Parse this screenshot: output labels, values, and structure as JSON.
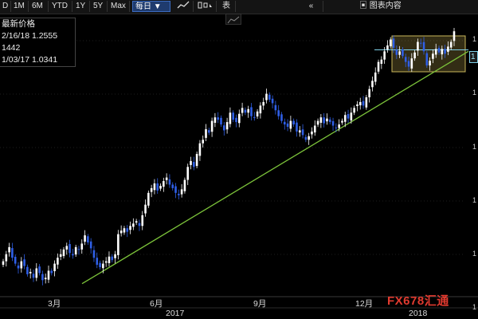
{
  "toolbar": {
    "buttons": [
      "D",
      "1M",
      "6M",
      "YTD",
      "1Y",
      "5Y",
      "Max"
    ],
    "interval": "每日",
    "table_label": "表",
    "collapse": "«",
    "chart_content": "图表内容"
  },
  "legend": {
    "title": "最新价格",
    "last_price": "2/16/18 1.2555",
    "avg": "1442",
    "low": "1/03/17 1.0341",
    "tag": "1"
  },
  "watermark": "FX678汇通",
  "icons": [
    "line-chart-icon",
    "candlestick-icon",
    "dropdown-icon",
    "chart-type-icon",
    "double-left-icon",
    "chart-content-icon"
  ],
  "colors": {
    "background": "#000000",
    "up": "#ffffff",
    "down": "#2f5fe6",
    "trendline": "#7cc43a",
    "level": "#7fd0e8",
    "box": "#b6a14a"
  },
  "chart_data": {
    "type": "candlestick",
    "x_labels": [
      "3月",
      "6月",
      "9月",
      "12月"
    ],
    "year_labels": [
      "2017",
      "2018"
    ],
    "y_tick_labels": [
      "1",
      "1",
      "1",
      "1",
      "1",
      "1"
    ],
    "series": [
      {
        "values": [
          1.06,
          1.066,
          1.072,
          1.063,
          1.058,
          1.054,
          1.06,
          1.056,
          1.049,
          1.051,
          1.046,
          1.054,
          1.05,
          1.044,
          1.046,
          1.052,
          1.05,
          1.058,
          1.063,
          1.066,
          1.07,
          1.073,
          1.067,
          1.065,
          1.072,
          1.07,
          1.075,
          1.082,
          1.076,
          1.071,
          1.063,
          1.057,
          1.055,
          1.058,
          1.06,
          1.064,
          1.061,
          1.066,
          1.083,
          1.086,
          1.088,
          1.085,
          1.09,
          1.092,
          1.094,
          1.09,
          1.099,
          1.108,
          1.118,
          1.122,
          1.126,
          1.12,
          1.124,
          1.128,
          1.131,
          1.125,
          1.122,
          1.118,
          1.116,
          1.121,
          1.129,
          1.14,
          1.145,
          1.14,
          1.151,
          1.16,
          1.163,
          1.172,
          1.169,
          1.179,
          1.182,
          1.18,
          1.176,
          1.171,
          1.178,
          1.186,
          1.18,
          1.178,
          1.185,
          1.19,
          1.186,
          1.189,
          1.183,
          1.182,
          1.187,
          1.192,
          1.195,
          1.202,
          1.197,
          1.194,
          1.188,
          1.183,
          1.179,
          1.176,
          1.174,
          1.179,
          1.176,
          1.17,
          1.171,
          1.167,
          1.163,
          1.166,
          1.17,
          1.175,
          1.179,
          1.182,
          1.177,
          1.181,
          1.178,
          1.175,
          1.173,
          1.176,
          1.179,
          1.184,
          1.181,
          1.186,
          1.19,
          1.193,
          1.195,
          1.192,
          1.199,
          1.206,
          1.213,
          1.22,
          1.229,
          1.231,
          1.238,
          1.243,
          1.248,
          1.241,
          1.235,
          1.238,
          1.234,
          1.229,
          1.225,
          1.232,
          1.237,
          1.246,
          1.245,
          1.238,
          1.226,
          1.23,
          1.236,
          1.24,
          1.237,
          1.24,
          1.236,
          1.242,
          1.246,
          1.255
        ]
      }
    ],
    "annotations": {
      "trendline": [
        [
          1.041,
          1.238
        ]
      ],
      "resistance": 1.2555,
      "box": [
        1.236,
        1.2555
      ]
    }
  }
}
